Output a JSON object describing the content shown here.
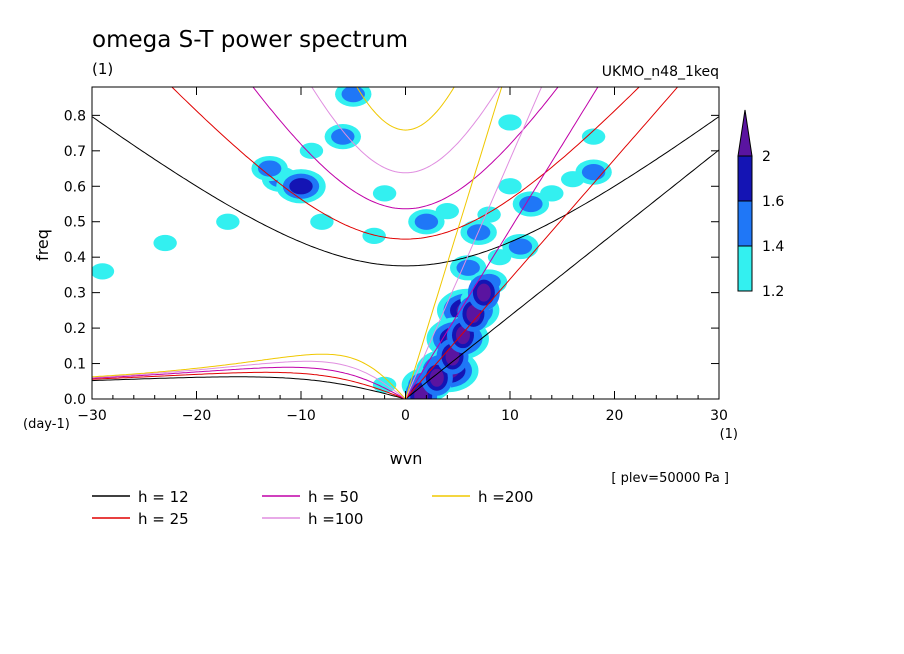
{
  "chart_data": {
    "type": "contour",
    "title": "omega S-T power spectrum",
    "subtitle": "(1)",
    "model_label": "UKMO_n48_1keq",
    "xlabel": "wvn",
    "ylabel": "freq",
    "x_unit": "(1)",
    "y_unit": "(day-1)",
    "level_note": "[ plev=50000 Pa ]",
    "xlim": [
      -30,
      30
    ],
    "ylim": [
      0,
      0.88
    ],
    "x_ticks": [
      -30,
      -20,
      -10,
      0,
      10,
      20,
      30
    ],
    "y_ticks": [
      0.0,
      0.1,
      0.2,
      0.3,
      0.4,
      0.5,
      0.6,
      0.7,
      0.8
    ],
    "y_tick_labels": [
      "0.0",
      "0.1",
      "0.2",
      "0.3",
      "0.4",
      "0.5",
      "0.6",
      "0.7",
      "0.8"
    ],
    "colorbar": {
      "levels": [
        1.2,
        1.4,
        1.6,
        2
      ],
      "labels": [
        "1.2",
        "1.4",
        "1.6",
        "2"
      ],
      "colors": [
        "#33f0f0",
        "#1f77f7",
        "#1414b4",
        "#5a14a0"
      ]
    },
    "dispersion_curves": [
      {
        "label": "h = 12",
        "h": 12,
        "color": "#000000"
      },
      {
        "label": "h = 25",
        "h": 25,
        "color": "#e00000"
      },
      {
        "label": "h = 50",
        "h": 50,
        "color": "#c000a8"
      },
      {
        "label": "h =100",
        "h": 100,
        "color": "#e08ee0"
      },
      {
        "label": "h =200",
        "h": 200,
        "color": "#f0c800"
      }
    ],
    "power_patches": [
      {
        "x": -5,
        "y": 0.86,
        "level": 2
      },
      {
        "x": -12,
        "y": 0.62,
        "level": 2
      },
      {
        "x": -10,
        "y": 0.6,
        "level": 3
      },
      {
        "x": -13,
        "y": 0.65,
        "level": 2
      },
      {
        "x": -9,
        "y": 0.7,
        "level": 1
      },
      {
        "x": -6,
        "y": 0.74,
        "level": 2
      },
      {
        "x": -8,
        "y": 0.5,
        "level": 1
      },
      {
        "x": -2,
        "y": 0.58,
        "level": 1
      },
      {
        "x": -3,
        "y": 0.46,
        "level": 1
      },
      {
        "x": 2,
        "y": 0.5,
        "level": 2
      },
      {
        "x": 4,
        "y": 0.53,
        "level": 1
      },
      {
        "x": 7,
        "y": 0.47,
        "level": 2
      },
      {
        "x": 8,
        "y": 0.52,
        "level": 1
      },
      {
        "x": 10,
        "y": 0.6,
        "level": 1
      },
      {
        "x": 12,
        "y": 0.55,
        "level": 2
      },
      {
        "x": 14,
        "y": 0.58,
        "level": 1
      },
      {
        "x": 16,
        "y": 0.62,
        "level": 1
      },
      {
        "x": 18,
        "y": 0.64,
        "level": 2
      },
      {
        "x": 6,
        "y": 0.37,
        "level": 2
      },
      {
        "x": 8,
        "y": 0.33,
        "level": 2
      },
      {
        "x": 9,
        "y": 0.4,
        "level": 1
      },
      {
        "x": 11,
        "y": 0.43,
        "level": 2
      },
      {
        "x": 6,
        "y": 0.25,
        "level": 4
      },
      {
        "x": 5,
        "y": 0.17,
        "level": 4
      },
      {
        "x": 4,
        "y": 0.08,
        "level": 4
      },
      {
        "x": 2,
        "y": 0.04,
        "level": 3
      },
      {
        "x": 7,
        "y": 0.28,
        "level": 2
      },
      {
        "x": -2,
        "y": 0.04,
        "level": 1
      },
      {
        "x": -29,
        "y": 0.36,
        "level": 1
      },
      {
        "x": -23,
        "y": 0.44,
        "level": 1
      },
      {
        "x": -17,
        "y": 0.5,
        "level": 1
      },
      {
        "x": 10,
        "y": 0.78,
        "level": 1
      },
      {
        "x": 18,
        "y": 0.74,
        "level": 1
      }
    ]
  }
}
